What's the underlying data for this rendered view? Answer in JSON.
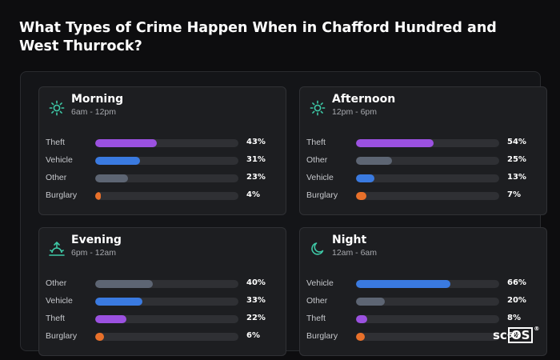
{
  "title": "What Types of Crime Happen When in Chafford Hundred and West Thurrock?",
  "colors": {
    "Theft": "#9b51e0",
    "Vehicle": "#3a7ae0",
    "Other": "#5d6573",
    "Burglary": "#e8702a",
    "icon": "#3ec9a7"
  },
  "logo": {
    "prefix": "sc",
    "boxed": "OS",
    "mark": "®"
  },
  "chart_data": {
    "type": "bar",
    "unit": "%",
    "xlim": [
      0,
      100
    ],
    "panels": [
      {
        "title": "Morning",
        "subtitle": "6am - 12pm",
        "icon": "sun-icon",
        "categories": [
          "Theft",
          "Vehicle",
          "Other",
          "Burglary"
        ],
        "values": [
          43,
          31,
          23,
          4
        ]
      },
      {
        "title": "Afternoon",
        "subtitle": "12pm - 6pm",
        "icon": "sun-icon",
        "categories": [
          "Theft",
          "Other",
          "Vehicle",
          "Burglary"
        ],
        "values": [
          54,
          25,
          13,
          7
        ]
      },
      {
        "title": "Evening",
        "subtitle": "6pm - 12am",
        "icon": "sunset-icon",
        "categories": [
          "Other",
          "Vehicle",
          "Theft",
          "Burglary"
        ],
        "values": [
          40,
          33,
          22,
          6
        ]
      },
      {
        "title": "Night",
        "subtitle": "12am - 6am",
        "icon": "moon-icon",
        "categories": [
          "Vehicle",
          "Other",
          "Theft",
          "Burglary"
        ],
        "values": [
          66,
          20,
          8,
          6
        ]
      }
    ]
  }
}
